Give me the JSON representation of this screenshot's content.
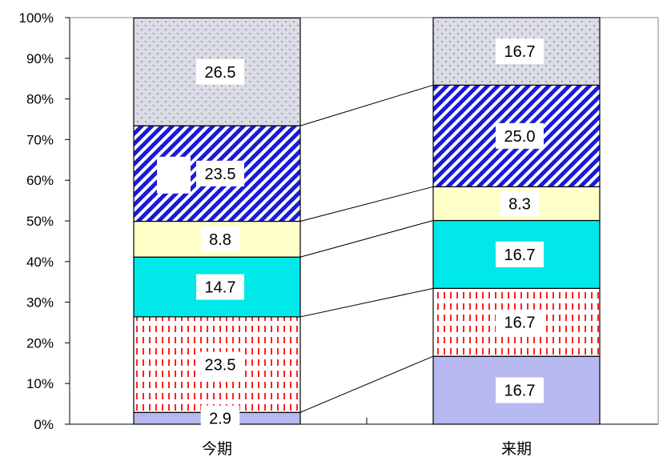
{
  "chart_data": {
    "type": "bar",
    "stacked": true,
    "percent": true,
    "categories": [
      "今期",
      "来期"
    ],
    "yticks": [
      "0%",
      "10%",
      "20%",
      "30%",
      "40%",
      "50%",
      "60%",
      "70%",
      "80%",
      "90%",
      "100%"
    ],
    "ylim": [
      0,
      100
    ],
    "grid": false,
    "legend": "none",
    "series_lines": true,
    "series": [
      {
        "values": [
          2.9,
          16.7
        ],
        "labels": [
          "2.9",
          "16.7"
        ],
        "color": "#b8b8f0",
        "pattern": "solid"
      },
      {
        "values": [
          23.5,
          16.7
        ],
        "labels": [
          "23.5",
          "16.7"
        ],
        "color": "#ff2020",
        "pattern": "dashed-vertical"
      },
      {
        "values": [
          14.7,
          16.7
        ],
        "labels": [
          "14.7",
          "16.7"
        ],
        "color": "#00e8e8",
        "pattern": "solid"
      },
      {
        "values": [
          8.8,
          8.3
        ],
        "labels": [
          "8.8",
          "8.3"
        ],
        "color": "#ffffc8",
        "pattern": "solid"
      },
      {
        "values": [
          23.5,
          25.0
        ],
        "labels": [
          "23.5",
          "25.0"
        ],
        "color": "#1a1ad8",
        "pattern": "diagonal-stripes"
      },
      {
        "values": [
          26.5,
          16.7
        ],
        "labels": [
          "26.5",
          "16.7"
        ],
        "color": "#d8d8e0",
        "pattern": "dotted"
      }
    ]
  }
}
